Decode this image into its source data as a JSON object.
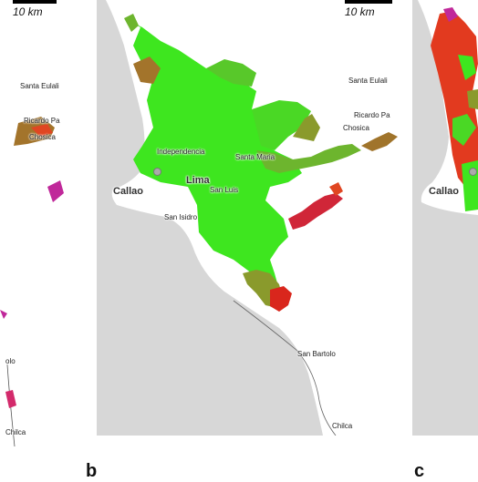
{
  "panels": [
    {
      "id": "a",
      "scale_label": "10 km",
      "places": [
        "Santa Eulali",
        "Ricardo Pa",
        "Chosica",
        "olo",
        "Chilca"
      ]
    },
    {
      "id": "b",
      "letter": "b",
      "scale_label": "10 km",
      "places": [
        "Santa Eulali",
        "Ricardo Pa",
        "Chosica",
        "Santa Maria",
        "Independencia",
        "Lima",
        "San Luis",
        "San Isidro",
        "Callao",
        "San Bartolo",
        "Chilca"
      ]
    },
    {
      "id": "c",
      "letter": "c",
      "places": [
        "Callao"
      ]
    }
  ],
  "colors": {
    "sea": "#d7d7d7",
    "land": "#ffffff",
    "urban_high": "#3ee61f",
    "urban_mid": "#8a9a2c",
    "urban_low": "#d9261c",
    "urban_alt": "#c0289a"
  }
}
